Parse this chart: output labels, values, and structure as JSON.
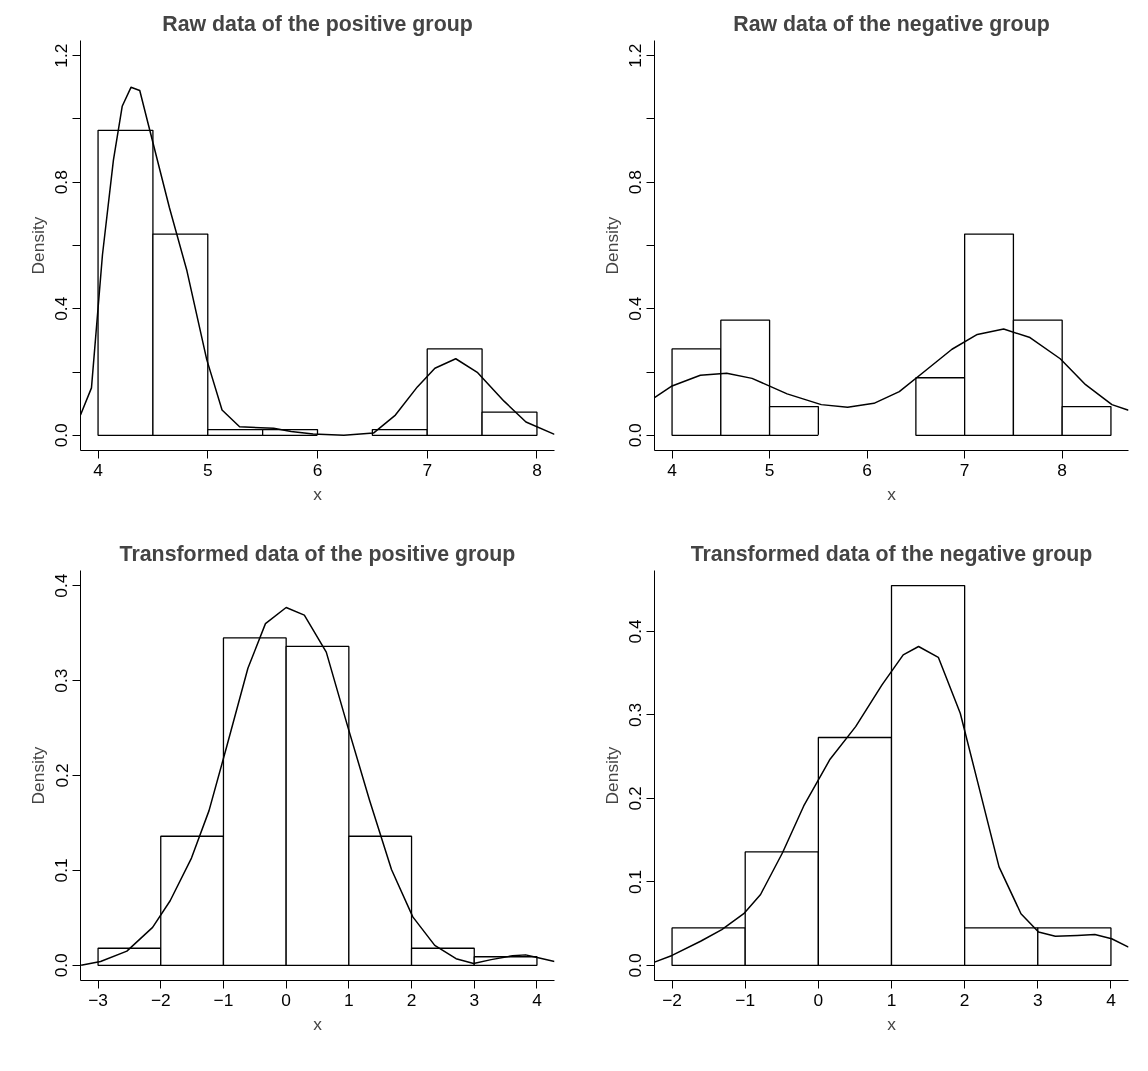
{
  "chart_data": [
    {
      "type": "histogram",
      "title": "Raw data of the positive group",
      "xlabel": "x",
      "ylabel": "Density",
      "bins": [
        4,
        4.5,
        5,
        5.5,
        6,
        6.5,
        7,
        7.5,
        8
      ],
      "values": [
        0.964,
        0.636,
        0.018,
        0.018,
        0,
        0.018,
        0.273,
        0.073
      ],
      "series": [
        {
          "type": "line",
          "color": "#000000",
          "x": [
            3.84,
            3.94,
            4.04,
            4.14,
            4.22,
            4.3,
            4.38,
            4.46,
            4.65,
            4.81,
            4.99,
            5.13,
            5.29,
            5.6,
            5.76,
            5.96,
            6.24,
            6.51,
            6.71,
            6.91,
            7.07,
            7.26,
            7.46,
            7.7,
            7.9,
            8.16
          ],
          "values": [
            0.064,
            0.15,
            0.57,
            0.87,
            1.04,
            1.1,
            1.09,
            0.98,
            0.72,
            0.52,
            0.24,
            0.08,
            0.027,
            0.022,
            0.012,
            0.004,
            0,
            0.007,
            0.064,
            0.153,
            0.212,
            0.242,
            0.198,
            0.108,
            0.042,
            0.003
          ]
        }
      ],
      "xlim": [
        3.84,
        8.16
      ],
      "ylim": [
        -0.048,
        1.248
      ],
      "xticks": [
        4,
        5,
        6,
        7,
        8
      ],
      "yticks": [
        {
          "value": 0,
          "label": "0.0"
        },
        {
          "value": 0.2,
          "label": null
        },
        0.4,
        {
          "value": 0.6,
          "label": null
        },
        0.8,
        {
          "value": 1.0,
          "label": null
        },
        1.2
      ],
      "grid": false,
      "color": "#ffffff"
    },
    {
      "type": "histogram",
      "title": "Raw data of the negative group",
      "xlabel": "x",
      "ylabel": "Density",
      "bins": [
        4,
        4.5,
        5,
        5.5,
        6,
        6.5,
        7,
        7.5,
        8,
        8.5
      ],
      "values": [
        0.273,
        0.364,
        0.091,
        0,
        0,
        0.182,
        0.636,
        0.364,
        0.091
      ],
      "series": [
        {
          "type": "line",
          "color": "#000000",
          "x": [
            3.82,
            4.0,
            4.29,
            4.56,
            4.82,
            5.18,
            5.53,
            5.8,
            6.07,
            6.33,
            6.6,
            6.87,
            7.13,
            7.4,
            7.67,
            7.98,
            8.24,
            8.51,
            8.68
          ],
          "values": [
            0.119,
            0.156,
            0.19,
            0.196,
            0.18,
            0.131,
            0.097,
            0.089,
            0.101,
            0.138,
            0.205,
            0.272,
            0.319,
            0.336,
            0.309,
            0.242,
            0.16,
            0.097,
            0.079
          ]
        }
      ],
      "xlim": [
        3.82,
        8.68
      ],
      "ylim": [
        -0.048,
        1.248
      ],
      "xticks": [
        4,
        5,
        6,
        7,
        8
      ],
      "yticks": [
        {
          "value": 0,
          "label": "0.0"
        },
        {
          "value": 0.2,
          "label": null
        },
        0.4,
        {
          "value": 0.6,
          "label": null
        },
        0.8,
        {
          "value": 1.0,
          "label": null
        },
        1.2
      ],
      "grid": false,
      "color": "#ffffff"
    },
    {
      "type": "histogram",
      "title": "Transformed data of the positive group",
      "xlabel": "x",
      "ylabel": "Density",
      "bins": [
        -3,
        -2,
        -1,
        0,
        1,
        2,
        3,
        4
      ],
      "values": [
        0.018,
        0.136,
        0.345,
        0.336,
        0.136,
        0.018,
        0.009
      ],
      "series": [
        {
          "type": "line",
          "color": "#000000",
          "x": [
            -3.27,
            -2.96,
            -2.54,
            -2.13,
            -1.85,
            -1.51,
            -1.23,
            -0.95,
            -0.61,
            -0.33,
            0.0,
            0.29,
            0.64,
            0.98,
            1.33,
            1.68,
            2.02,
            2.37,
            2.71,
            2.99,
            3.27,
            3.61,
            3.82,
            4.02,
            4.28
          ],
          "values": [
            0,
            0.004,
            0.015,
            0.04,
            0.068,
            0.113,
            0.163,
            0.23,
            0.313,
            0.36,
            0.377,
            0.369,
            0.33,
            0.252,
            0.174,
            0.101,
            0.051,
            0.021,
            0.007,
            0.002,
            0.006,
            0.01,
            0.011,
            0.008,
            0.004
          ]
        }
      ],
      "xlim": [
        -3.28,
        4.28
      ],
      "ylim": [
        -0.016,
        0.416
      ],
      "xticks": [
        {
          "value": -3,
          "label": "−3"
        },
        {
          "value": -2,
          "label": "−2"
        },
        {
          "value": -1,
          "label": "−1"
        },
        0,
        1,
        2,
        3,
        4
      ],
      "yticks": [
        {
          "value": 0,
          "label": "0.0"
        },
        0.1,
        0.2,
        0.3,
        0.4
      ],
      "grid": false,
      "color": "#ffffff"
    },
    {
      "type": "histogram",
      "title": "Transformed data of the negative group",
      "xlabel": "x",
      "ylabel": "Density",
      "bins": [
        -2,
        -1,
        0,
        1,
        2,
        3,
        4
      ],
      "values": [
        0.045,
        0.136,
        0.273,
        0.455,
        0.045,
        0.045
      ],
      "series": [
        {
          "type": "line",
          "color": "#000000",
          "x": [
            -2.24,
            -2.0,
            -1.61,
            -1.32,
            -1.02,
            -0.79,
            -0.49,
            -0.2,
            0.16,
            0.51,
            0.87,
            1.16,
            1.37,
            1.64,
            1.94,
            2.18,
            2.47,
            2.77,
            3.01,
            3.24,
            3.54,
            3.78,
            4.01,
            4.24
          ],
          "values": [
            0.004,
            0.012,
            0.029,
            0.043,
            0.062,
            0.085,
            0.135,
            0.191,
            0.247,
            0.286,
            0.336,
            0.372,
            0.382,
            0.369,
            0.302,
            0.219,
            0.118,
            0.062,
            0.04,
            0.035,
            0.036,
            0.037,
            0.032,
            0.022
          ]
        }
      ],
      "xlim": [
        -2.24,
        4.24
      ],
      "ylim": [
        -0.018,
        0.473
      ],
      "xticks": [
        {
          "value": -2,
          "label": "−2"
        },
        {
          "value": -1,
          "label": "−1"
        },
        0,
        1,
        2,
        3,
        4
      ],
      "yticks": [
        {
          "value": 0,
          "label": "0.0"
        },
        0.1,
        0.2,
        0.3,
        0.4
      ],
      "grid": false,
      "color": "#ffffff"
    }
  ]
}
